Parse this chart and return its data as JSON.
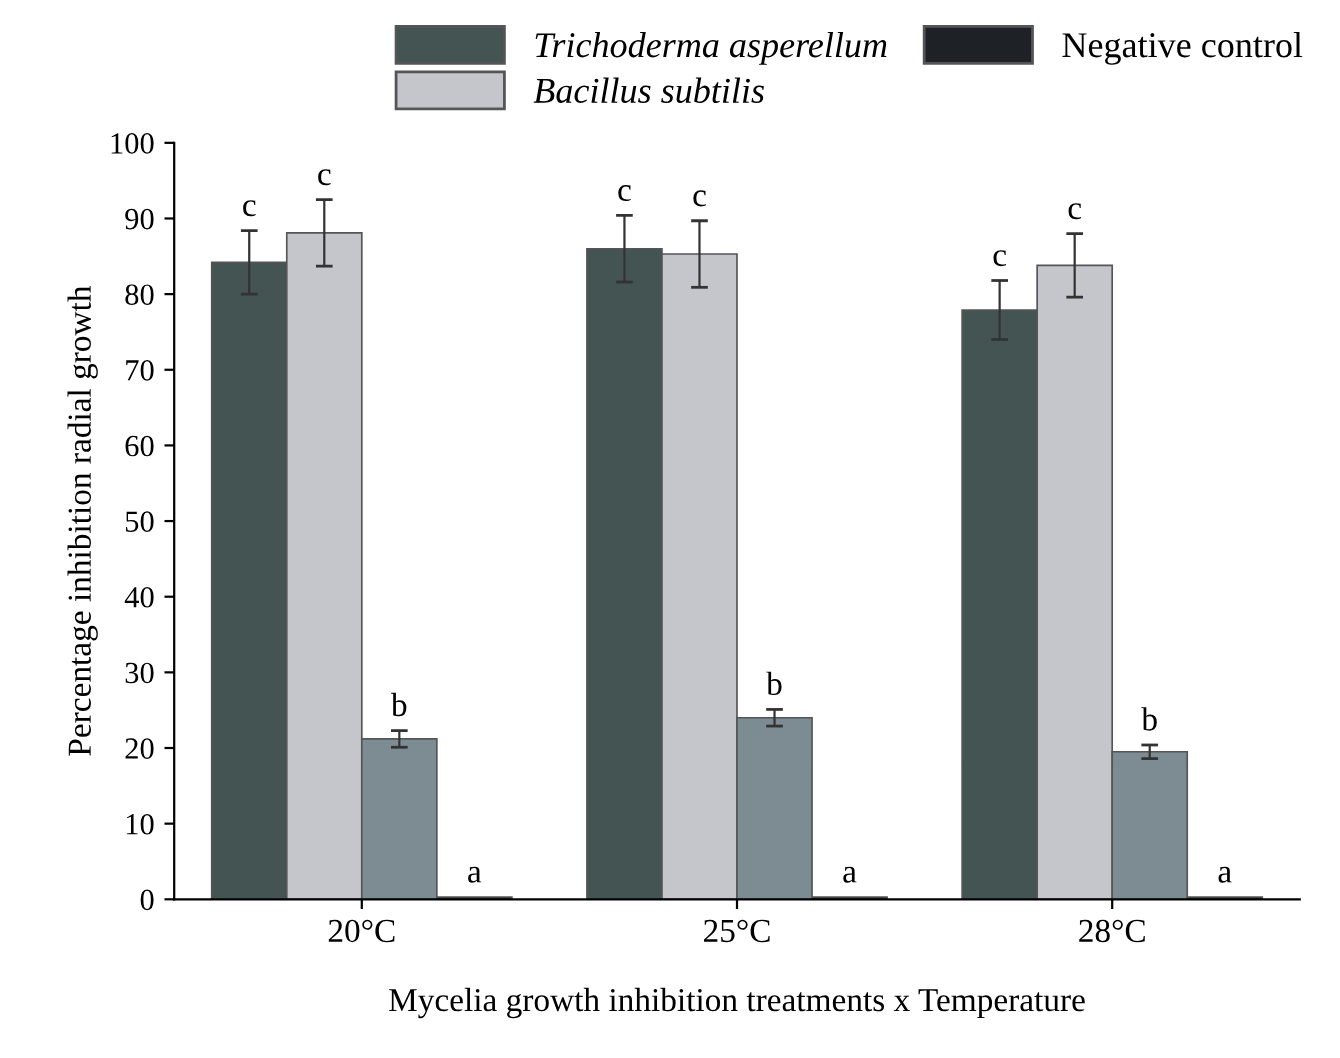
{
  "chart_data": {
    "type": "bar",
    "xlabel": "Mycelia growth inhibition treatments x Temperature",
    "ylabel": "Percentage inhibition radial growth",
    "categories": [
      "20°C",
      "25°C",
      "28°C"
    ],
    "series": [
      {
        "name": "Trichoderma asperellum",
        "color": "#435453",
        "values": [
          84.2,
          86.0,
          77.9
        ],
        "errors": [
          4.2,
          4.4,
          3.9
        ],
        "value_labels": [
          "c",
          "c",
          "c"
        ]
      },
      {
        "name": "Bacillus subtilis",
        "color": "#c4c6cc",
        "values": [
          88.1,
          85.3,
          83.8
        ],
        "errors": [
          4.4,
          4.4,
          4.2
        ],
        "value_labels": [
          "c",
          "c",
          "c"
        ]
      },
      {
        "color": "#7d8c93",
        "values": [
          21.2,
          24.0,
          19.5
        ],
        "errors": [
          1.1,
          1.1,
          0.9
        ],
        "value_labels": [
          "b",
          "b",
          "b"
        ]
      },
      {
        "name": "Negative control",
        "color": "#1e2126",
        "values": [
          0.3,
          0.3,
          0.3
        ],
        "value_labels": [
          "a",
          "a",
          "a"
        ]
      }
    ],
    "ylim": [
      0,
      100
    ],
    "yticks": [
      0,
      10,
      20,
      30,
      40,
      50,
      60,
      70,
      80,
      90,
      100
    ],
    "grid": false,
    "legend": "top"
  }
}
